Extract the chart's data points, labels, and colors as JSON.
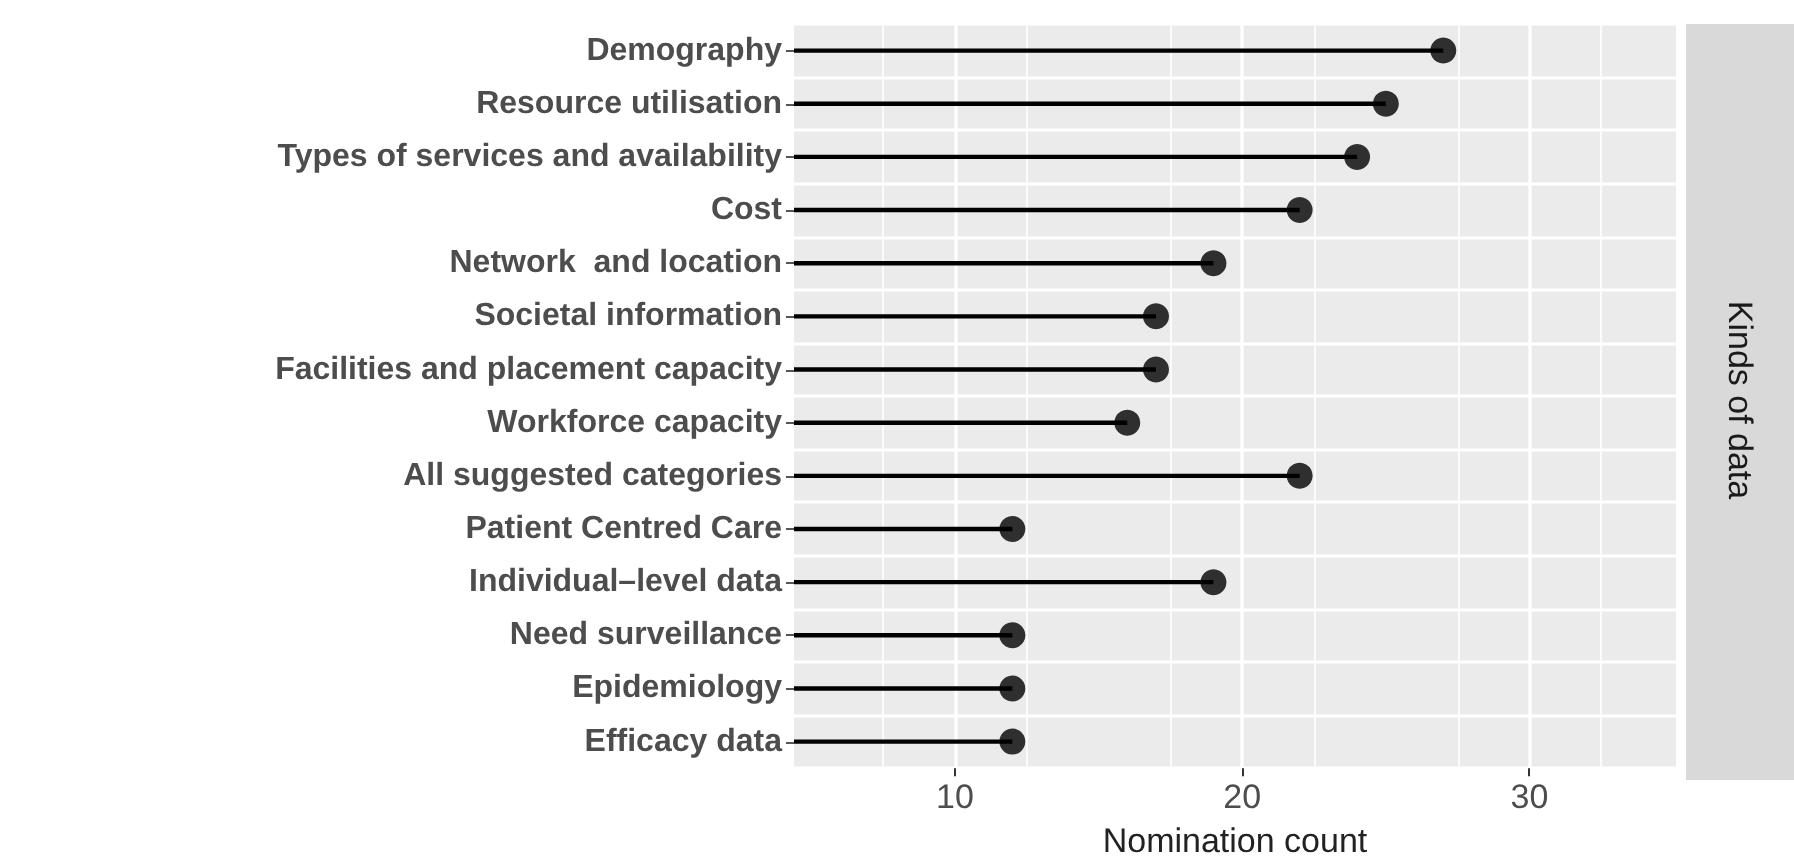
{
  "chart_data": {
    "type": "lollipop",
    "orientation": "horizontal",
    "categories": [
      "Demography",
      "Resource utilisation",
      "Types of services and availability",
      "Cost",
      "Network  and location",
      "Societal information",
      "Facilities and placement capacity",
      "Workforce capacity",
      "All suggested categories",
      "Patient Centred Care",
      "Individual–level data",
      "Need surveillance",
      "Epidemiology",
      "Efficacy data"
    ],
    "series": [
      {
        "color": "#000000",
        "values": [
          27,
          25,
          24,
          22,
          19,
          17,
          17,
          16,
          22,
          12,
          19,
          12,
          12,
          12
        ]
      }
    ],
    "xlabel": "Nomination count",
    "xlim": [
      4.4,
      35.1
    ],
    "xticks": [
      10,
      20,
      30
    ],
    "grid": true,
    "marker": "circle",
    "annotations": [
      "Kinds of data"
    ]
  }
}
